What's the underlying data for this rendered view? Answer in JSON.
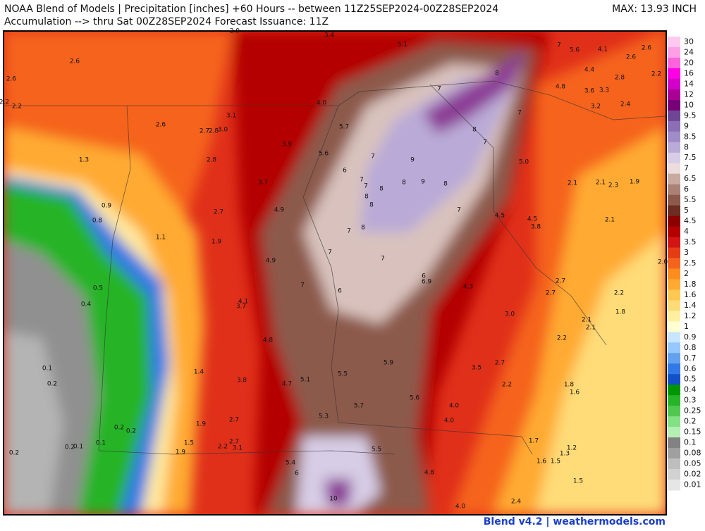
{
  "header": {
    "title_line1": "NOAA Blend of Models | Precipitation [inches] +60 Hours -- between 11Z25SEP2024-00Z28SEP2024",
    "title_line2": "Accumulation --> thru Sat 00Z28SEP2024   Forecast Issuance: 11Z",
    "max_label": "MAX: 13.93 INCH"
  },
  "colorbar": [
    {
      "label": "30",
      "color": "#ffc8f0"
    },
    {
      "label": "24",
      "color": "#ffa0e6"
    },
    {
      "label": "20",
      "color": "#ff64dc"
    },
    {
      "label": "16",
      "color": "#ff00e6"
    },
    {
      "label": "14",
      "color": "#d200c8"
    },
    {
      "label": "12",
      "color": "#aa0096"
    },
    {
      "label": "10",
      "color": "#780078"
    },
    {
      "label": "9.5",
      "color": "#6e4696"
    },
    {
      "label": "9",
      "color": "#8c6eb4"
    },
    {
      "label": "8.5",
      "color": "#a08cc8"
    },
    {
      "label": "8",
      "color": "#b9aad7"
    },
    {
      "label": "7.5",
      "color": "#d7cde6"
    },
    {
      "label": "7",
      "color": "#ecdcdc"
    },
    {
      "label": "6.5",
      "color": "#c8aaa0"
    },
    {
      "label": "6",
      "color": "#aa8275"
    },
    {
      "label": "5.5",
      "color": "#8c5a4b"
    },
    {
      "label": "5",
      "color": "#6e2d23"
    },
    {
      "label": "4.5",
      "color": "#8c0000"
    },
    {
      "label": "4",
      "color": "#b40000"
    },
    {
      "label": "3.5",
      "color": "#d21414"
    },
    {
      "label": "3",
      "color": "#e63c14"
    },
    {
      "label": "2.5",
      "color": "#f5641e"
    },
    {
      "label": "2",
      "color": "#ff8c1e"
    },
    {
      "label": "1.8",
      "color": "#ffaa32"
    },
    {
      "label": "1.6",
      "color": "#ffc850"
    },
    {
      "label": "1.4",
      "color": "#ffdc78"
    },
    {
      "label": "1.2",
      "color": "#fff0a0"
    },
    {
      "label": "1",
      "color": "#ffffd2"
    },
    {
      "label": "0.9",
      "color": "#c8e6ff"
    },
    {
      "label": "0.8",
      "color": "#96c8ff"
    },
    {
      "label": "0.7",
      "color": "#64a0f0"
    },
    {
      "label": "0.6",
      "color": "#3278e6"
    },
    {
      "label": "0.5",
      "color": "#1450c8"
    },
    {
      "label": "0.4",
      "color": "#009600"
    },
    {
      "label": "0.3",
      "color": "#28b428"
    },
    {
      "label": "0.25",
      "color": "#50c850"
    },
    {
      "label": "0.2",
      "color": "#82e182"
    },
    {
      "label": "0.15",
      "color": "#b4f0b4"
    },
    {
      "label": "0.1",
      "color": "#828282"
    },
    {
      "label": "0.08",
      "color": "#a0a0a0"
    },
    {
      "label": "0.05",
      "color": "#bebebe"
    },
    {
      "label": "0.02",
      "color": "#d2d2d2"
    },
    {
      "label": "0.01",
      "color": "#e6e6e6"
    }
  ],
  "point_labels": [
    "2.9",
    "3.4",
    "5.1",
    "7",
    "5.6",
    "4.1",
    "2.6",
    "2.6",
    "2.6",
    "4.4",
    "2.8",
    "2.2",
    "2.6",
    "8",
    "7",
    "4.8",
    "3.6",
    "3.3",
    "2.2",
    "2.2",
    "4.0",
    "3.2",
    "2.4",
    "7",
    "3.1",
    "2.6",
    "5.7",
    "8",
    "2.7",
    "2.8",
    "3.0",
    "3.9",
    "7",
    "5.6",
    "7",
    "9",
    "5.0",
    "2.8",
    "1.3",
    "6",
    "7",
    "8",
    "9",
    "8",
    "2.1",
    "2.1",
    "2.3",
    "1.9",
    "7",
    "8",
    "3.7",
    "8",
    "8",
    "7",
    "0.9",
    "4.9",
    "2.7",
    "4.5",
    "4.5",
    "0.8",
    "2.1",
    "3.8",
    "8",
    "7",
    "1.1",
    "1.9",
    "7",
    "7",
    "4.9",
    "2.0",
    "6",
    "6.9",
    "0.5",
    "7",
    "2.7",
    "4.3",
    "6",
    "2.7",
    "2.2",
    "0.4",
    "4.1",
    "3.7",
    "1.8",
    "3.0",
    "2.1",
    "2.1",
    "4.8",
    "2.2",
    "5.9",
    "2.7",
    "3.5",
    "0.1",
    "1.4",
    "5.5",
    "5.1",
    "3.8",
    "0.2",
    "4.7",
    "2.2",
    "1.8",
    "1.6",
    "5.6",
    "5.7",
    "4.0",
    "5.3",
    "4.0",
    "1.9",
    "2.7",
    "0.2",
    "0.2",
    "1.7",
    "1.5",
    "0.1",
    "2.7",
    "0.2",
    "0.1",
    "2.2",
    "3.1",
    "5.5",
    "1.2",
    "0.2",
    "1.9",
    "1.3",
    "1.6",
    "1.5",
    "5.4",
    "6",
    "4.8",
    "1.5",
    "10",
    "2.4",
    "4.0"
  ],
  "footer": "Blend v4.2 | weathermodels.com"
}
